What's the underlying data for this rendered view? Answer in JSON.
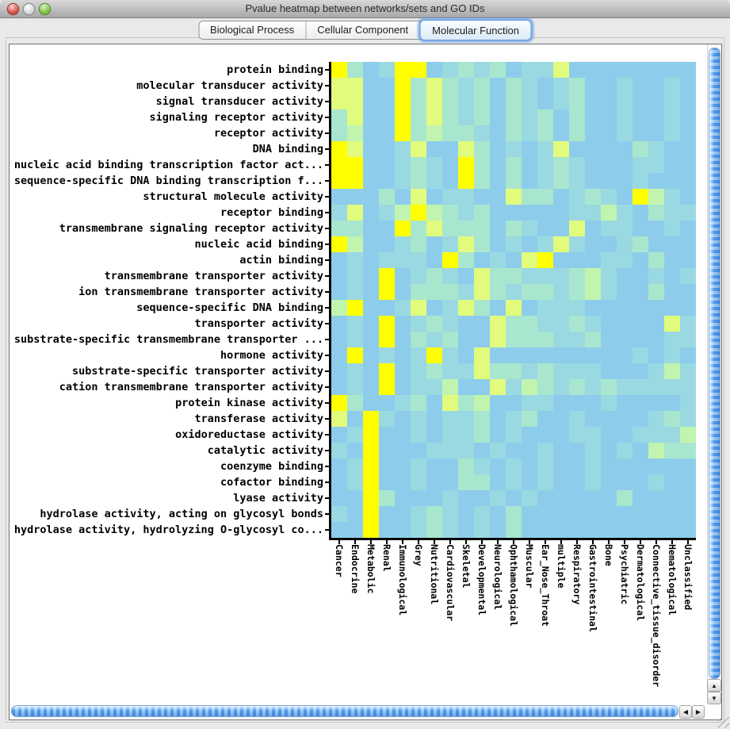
{
  "window": {
    "title": "Pvalue heatmap between networks/sets and GO IDs",
    "traffic_lights": {
      "close": "#D8514A",
      "minimize": "#DADADA",
      "zoom": "#7BC043"
    }
  },
  "tabs": [
    {
      "label": "Biological Process",
      "selected": false
    },
    {
      "label": "Cellular Component",
      "selected": false
    },
    {
      "label": "Molecular Function",
      "selected": true
    }
  ],
  "scrollbars": {
    "up": "▲",
    "down": "▼",
    "left": "◀",
    "right": "▶"
  },
  "chart_data": {
    "type": "heatmap",
    "title": "Pvalue heatmap between networks/sets and GO IDs",
    "rows": [
      "protein binding",
      "molecular transducer activity",
      "signal transducer activity",
      "signaling receptor activity",
      "receptor activity",
      "DNA binding",
      "nucleic acid binding transcription factor act...",
      "sequence-specific DNA binding transcription f...",
      "structural molecule activity",
      "receptor binding",
      "transmembrane signaling receptor activity",
      "nucleic acid binding",
      "actin binding",
      "transmembrane transporter activity",
      "ion transmembrane transporter activity",
      "sequence-specific DNA binding",
      "transporter activity",
      "substrate-specific transmembrane transporter ...",
      "hormone activity",
      "substrate-specific transporter activity",
      "cation transmembrane transporter activity",
      "protein kinase activity",
      "transferase activity",
      "oxidoreductase activity",
      "catalytic activity",
      "coenzyme binding",
      "cofactor binding",
      "lyase activity",
      "hydrolase activity, acting on glycosyl bonds",
      "hydrolase activity, hydrolyzing O-glycosyl co..."
    ],
    "columns": [
      "Cancer",
      "Endocrine",
      "Metabolic",
      "Renal",
      "Immunological",
      "Grey",
      "Nutritional",
      "Cardiovascular",
      "Skeletal",
      "Developmental",
      "Neurological",
      "Ophthamological",
      "Muscular",
      "Ear_Nose_Throat",
      "multiple",
      "Respiratory",
      "Gastrointestinal",
      "Bone",
      "Psychiatric",
      "Dermatological",
      "Connective_tissue_disorder",
      "Hematological",
      "Unclassified"
    ],
    "palette": [
      "#8DCDEB",
      "#9AD9E2",
      "#A9E6CE",
      "#C0F4AF",
      "#E1FB7D",
      "#FFFF00"
    ],
    "grid": [
      "52015501212011400000000",
      "44005242120210120010010",
      "44005242120210120010010",
      "24005242120212020010010",
      "23005232210212020010010",
      "54001400420101400002100",
      "55001210520201210001100",
      "55001210520201210001000",
      "00020401100422012105310",
      "14013532120000011310211",
      "22005242220210040110010",
      "53001201420101410012000",
      "01011105201045000110200",
      "01050121042211123100101",
      "01050222142122123100200",
      "35001401420401110000000",
      "01050121004221121000041",
      "01050212004222112000011",
      "05010151040000000001010",
      "01050121142212111000131",
      "01050113004132121211111",
      "52001204230011000100001",
      "40510101120120010000121",
      "01500101120100011001113",
      "10500011101001001010322",
      "01500100210101001000000",
      "01500100220101001000100",
      "00520001001010000020000",
      "10500121010200000000000",
      "00500121010200000000000"
    ]
  }
}
